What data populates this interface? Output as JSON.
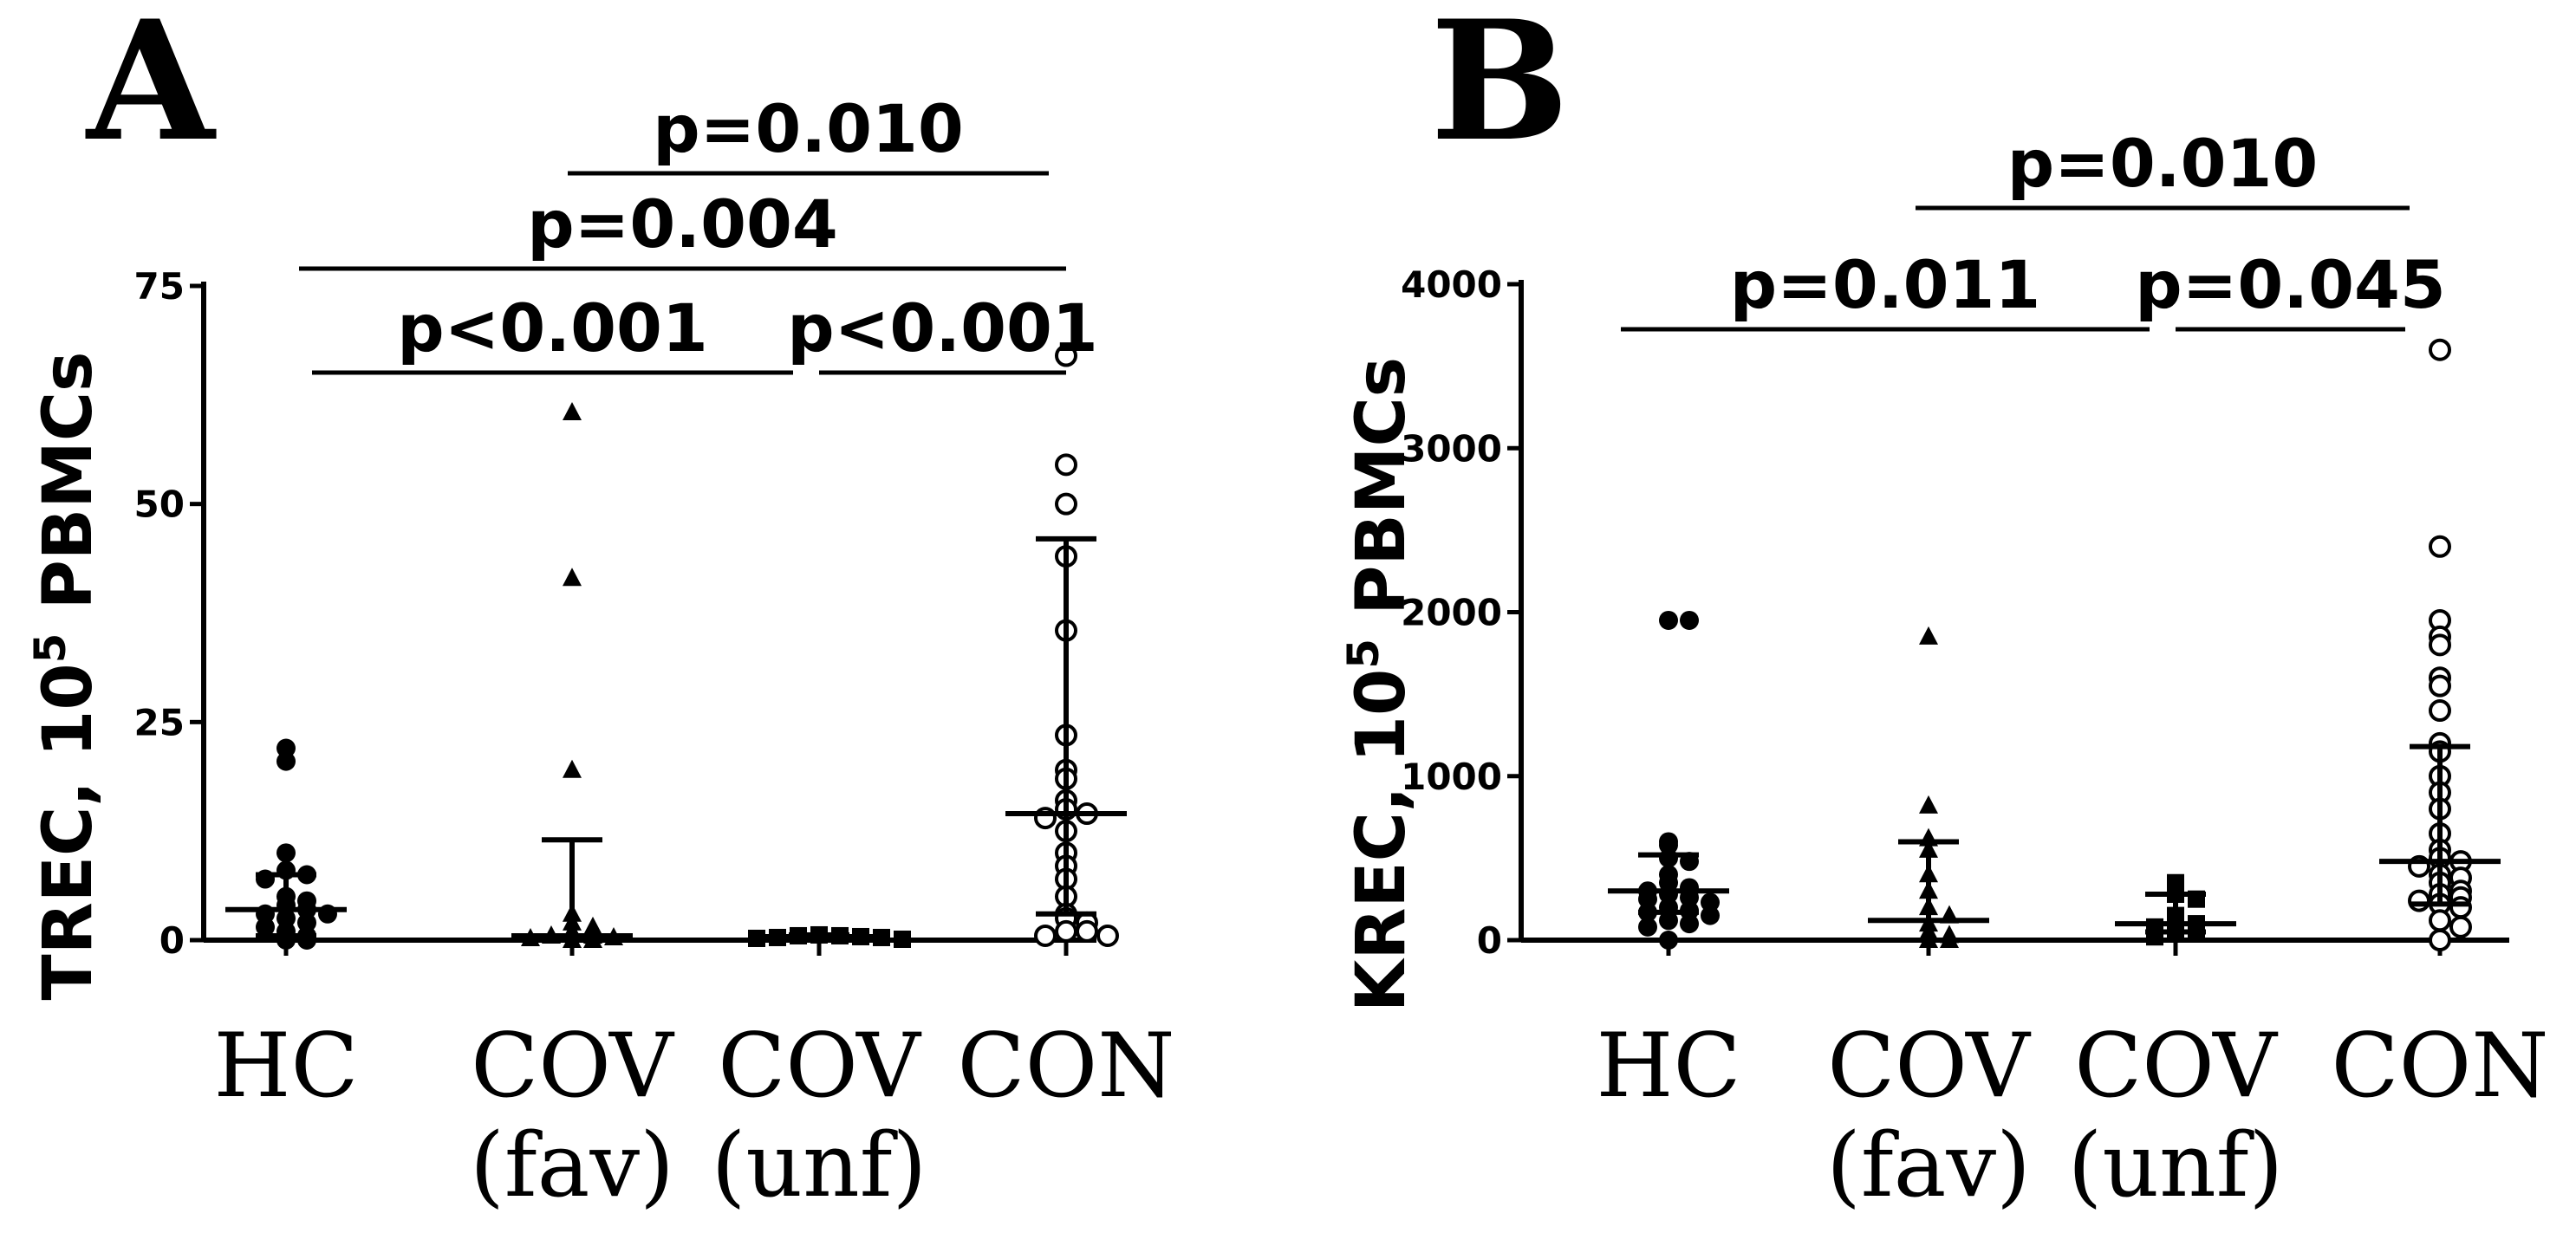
{
  "chart_data": [
    {
      "type": "scatter",
      "panel": "A",
      "ylabel": "TREC, 10",
      "ylabel_sup": "5",
      "ylabel_end": " PBMCs",
      "ylim": [
        0,
        75
      ],
      "yticks": [
        0,
        25,
        50,
        75
      ],
      "categories": [
        {
          "line1": "HC",
          "line2": ""
        },
        {
          "line1": "COV",
          "line2": "(fav)"
        },
        {
          "line1": "COV",
          "line2": "(unf)"
        },
        {
          "line1": "CON",
          "line2": ""
        }
      ],
      "groups": [
        {
          "marker": "circle-filled",
          "values": [
            22,
            20.5,
            10,
            8,
            7.5,
            7,
            5,
            4.5,
            4,
            3.5,
            3,
            3,
            2.5,
            2,
            1.5,
            1,
            0.5,
            0,
            0
          ],
          "median": 3.5,
          "q1": 0.5,
          "q3": 7.5
        },
        {
          "marker": "triangle-filled",
          "values": [
            60.5,
            41.5,
            19.5,
            3,
            2,
            1.5,
            1,
            0.5,
            0.5,
            0.3,
            0.2,
            0,
            0
          ],
          "median": 0.5,
          "q1": 0,
          "q3": 11.5
        },
        {
          "marker": "square-filled",
          "values": [
            0.6,
            0.5,
            0.5,
            0.4,
            0.3,
            0.3,
            0.2,
            0.1
          ],
          "median": 0.4,
          "q1": 0.2,
          "q3": 0.6
        },
        {
          "marker": "circle-open",
          "values": [
            67,
            54.5,
            50,
            44,
            35.5,
            23.5,
            19.5,
            18.5,
            16,
            15,
            14.5,
            14,
            12.5,
            10,
            8.5,
            7,
            5,
            3,
            2.5,
            2,
            1,
            1,
            0.5,
            0.5
          ],
          "median": 14.5,
          "q1": 3,
          "q3": 46
        }
      ],
      "comparisons": [
        {
          "label": "p=0.010",
          "from": 1,
          "to": 3
        },
        {
          "label": "p=0.004",
          "from": 0,
          "to": 3
        },
        {
          "label": "p<0.001",
          "from": 0,
          "to": 2
        },
        {
          "label": "p<0.001",
          "from": 2,
          "to": 3
        }
      ]
    },
    {
      "type": "scatter",
      "panel": "B",
      "ylabel": "KREC, 10",
      "ylabel_sup": "5",
      "ylabel_end": " PBMCs",
      "ylim": [
        0,
        4000
      ],
      "yticks": [
        0,
        1000,
        2000,
        3000,
        4000
      ],
      "categories": [
        {
          "line1": "HC",
          "line2": ""
        },
        {
          "line1": "COV",
          "line2": "(fav)"
        },
        {
          "line1": "COV",
          "line2": "(unf)"
        },
        {
          "line1": "CON",
          "line2": ""
        }
      ],
      "groups": [
        {
          "marker": "circle-filled",
          "values": [
            1950,
            1950,
            600,
            580,
            500,
            480,
            400,
            350,
            320,
            300,
            280,
            260,
            250,
            230,
            200,
            180,
            170,
            150,
            120,
            100,
            80,
            0
          ],
          "median": 300,
          "q1": 170,
          "q3": 520
        },
        {
          "marker": "triangle-filled",
          "values": [
            1850,
            820,
            620,
            550,
            400,
            300,
            200,
            150,
            100,
            50,
            30,
            0,
            0
          ],
          "median": 120,
          "q1": 0,
          "q3": 600
        },
        {
          "marker": "square-filled",
          "values": [
            350,
            280,
            250,
            150,
            120,
            100,
            80,
            60,
            40,
            20
          ],
          "median": 100,
          "q1": 50,
          "q3": 280
        },
        {
          "marker": "circle-open",
          "values": [
            3600,
            2400,
            1950,
            1850,
            1800,
            1600,
            1550,
            1400,
            1200,
            1150,
            1000,
            900,
            800,
            650,
            550,
            500,
            480,
            450,
            400,
            380,
            350,
            300,
            280,
            260,
            240,
            220,
            200,
            120,
            80,
            0
          ],
          "median": 480,
          "q1": 220,
          "q3": 1180
        }
      ],
      "comparisons": [
        {
          "label": "p=0.010",
          "from": 1,
          "to": 3
        },
        {
          "label": "p=0.011",
          "from": 0,
          "to": 2
        },
        {
          "label": "p=0.045",
          "from": 2,
          "to": 3
        }
      ]
    }
  ]
}
